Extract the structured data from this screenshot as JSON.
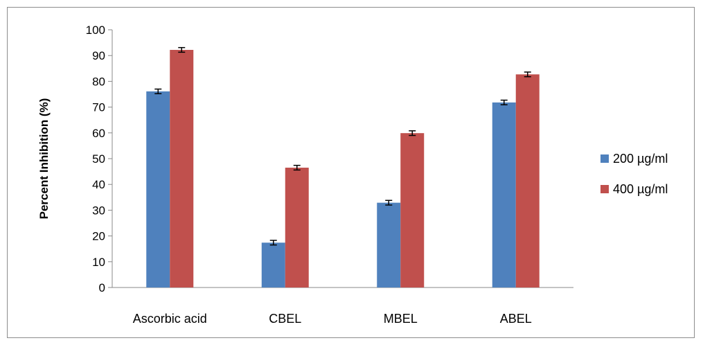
{
  "chart_data": {
    "type": "bar",
    "title": "",
    "xlabel": "",
    "ylabel": "Percent Inhibition (%)",
    "ylim": [
      0,
      100
    ],
    "ytick_step": 10,
    "categories": [
      "Ascorbic acid",
      "CBEL",
      "MBEL",
      "ABEL"
    ],
    "series": [
      {
        "name": "200 µg/ml",
        "color": "#4F81BD",
        "values": [
          76.1,
          17.4,
          32.9,
          71.8
        ],
        "errors": [
          0.9,
          0.9,
          0.9,
          0.9
        ]
      },
      {
        "name": "400 µg/ml",
        "color": "#C0504D",
        "values": [
          92.2,
          46.5,
          59.9,
          82.7
        ],
        "errors": [
          0.9,
          0.9,
          0.9,
          0.9
        ]
      }
    ],
    "grid": false,
    "legend_position": "right"
  }
}
